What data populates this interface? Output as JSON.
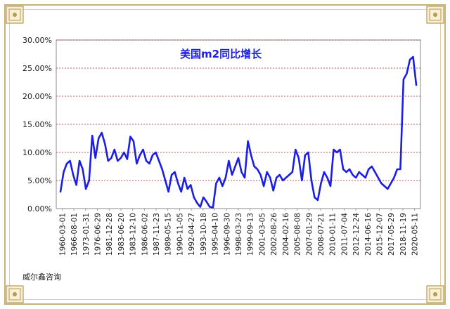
{
  "chart_data": {
    "type": "line",
    "title": "美国m2同比增长",
    "xlabel": "",
    "ylabel": "",
    "x_tick_labels": [
      "1960-03-01",
      "1966-08-01",
      "1973-01-31",
      "1976-06-29",
      "1981-12-28",
      "1983-06-20",
      "1983-12-10",
      "1986-06-02",
      "1987-11-23",
      "1989-05-15",
      "1990-11-05",
      "1992-04-27",
      "1993-10-18",
      "1995-04-10",
      "1996-09-30",
      "1998-03-23",
      "1999-09-13",
      "2001-03-05",
      "2002-08-26",
      "2004-02-16",
      "2005-08-08",
      "2007-01-29",
      "2008-07-21",
      "2010-01-11",
      "2011-07-04",
      "2012-12-24",
      "2014-06-16",
      "2015-12-07",
      "2017-05-29",
      "2018-11-19",
      "2020-05-11"
    ],
    "y_tick_labels": [
      "0.00%",
      "5.00%",
      "10.00%",
      "15.00%",
      "20.00%",
      "25.00%",
      "30.00%"
    ],
    "ylim": [
      0,
      30
    ],
    "y_grid_step": 5,
    "grid": true,
    "legend": "none",
    "series": [
      {
        "color": "#1b1ee6",
        "x_index": [
          0,
          0.3,
          0.6,
          1,
          1.5,
          2,
          2.5,
          3,
          3.3,
          3.6,
          4,
          4.5,
          5,
          5.5,
          5.8,
          6,
          6.5,
          7,
          7.5,
          8,
          8.5,
          9,
          9.5,
          10,
          10.5,
          11,
          11.5,
          12,
          12.5,
          13,
          13.5,
          14,
          14.5,
          15,
          15.5,
          16,
          16.5,
          17,
          17.5,
          18,
          18.5,
          19,
          19.5,
          20,
          20.5,
          21,
          21.5,
          22,
          22.5,
          23,
          23.5,
          24,
          24.5,
          25,
          25.5,
          26,
          26.5,
          27,
          27.5,
          28,
          28.3,
          28.6,
          28.9,
          29.2,
          29.4,
          29.6,
          29.8,
          30,
          30.2
        ],
        "values": [
          3.0,
          6.5,
          8.0,
          8.5,
          6.0,
          4.2,
          8.5,
          7.0,
          3.5,
          5.0,
          13.0,
          9.0,
          12.5,
          13.5,
          11.5,
          8.5,
          9.0,
          10.5,
          8.5,
          9.0,
          10.0,
          8.8,
          12.8,
          12.0,
          8.0,
          9.5,
          10.5,
          8.5,
          8.0,
          9.5,
          10.0,
          8.5,
          7.0,
          5.0,
          3.0,
          6.0,
          6.5,
          4.5,
          3.0,
          5.5,
          3.5,
          4.2,
          2.0,
          1.0,
          0.3,
          2.0,
          1.2,
          0.3,
          0.2,
          4.5,
          5.5,
          4.0,
          5.5,
          8.5,
          6.0,
          7.5,
          9.0,
          6.5,
          5.5,
          12.0,
          9.5,
          7.5,
          7.0,
          6.0,
          4.0,
          6.5,
          5.5,
          3.2,
          5.5
        ]
      }
    ],
    "series_full_values": [
      3.0,
      6.5,
      8.0,
      8.5,
      6.0,
      4.2,
      8.5,
      7.0,
      3.5,
      5.0,
      13.0,
      9.0,
      12.5,
      13.5,
      11.5,
      8.5,
      9.0,
      10.5,
      8.5,
      9.0,
      10.0,
      8.8,
      12.8,
      12.0,
      8.0,
      9.5,
      10.5,
      8.5,
      8.0,
      9.5,
      10.0,
      8.5,
      7.0,
      5.0,
      3.0,
      6.0,
      6.5,
      4.5,
      3.0,
      5.5,
      3.5,
      4.2,
      2.0,
      1.0,
      0.3,
      2.0,
      1.2,
      0.3,
      0.2,
      4.5,
      5.5,
      4.0,
      5.5,
      8.5,
      6.0,
      7.5,
      9.0,
      6.5,
      5.5,
      12.0,
      9.5,
      7.5,
      7.0,
      6.0,
      4.0,
      6.5,
      5.5,
      3.2,
      5.5,
      6.0,
      5.0,
      5.5,
      6.0,
      6.5,
      10.5,
      9.0,
      5.0,
      9.5,
      10.0,
      5.0,
      2.0,
      1.5,
      4.5,
      6.5,
      5.5,
      4.0,
      10.5,
      10.0,
      10.5,
      7.0,
      6.5,
      7.0,
      6.0,
      5.5,
      6.5,
      6.0,
      5.5,
      7.0,
      7.5,
      6.5,
      5.5,
      4.5,
      4.0,
      3.5,
      4.5,
      5.5,
      7.0,
      7.0,
      23.0,
      24.0,
      26.5,
      27.0,
      22.0
    ]
  },
  "source_note": "威尔鑫咨询"
}
